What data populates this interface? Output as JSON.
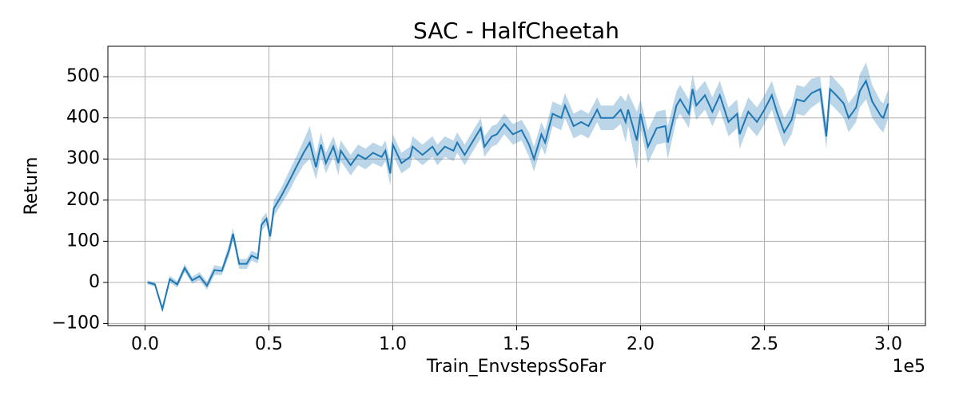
{
  "chart_data": {
    "type": "line",
    "title": "SAC - HalfCheetah",
    "x_label": "Train_EnvstepsSoFar",
    "y_label": "Return",
    "x_offset_label": "1e5",
    "x": [
      1000,
      4000,
      7000,
      10000,
      13000,
      16000,
      19000,
      22000,
      25000,
      28000,
      31000,
      34000,
      35500,
      38000,
      41000,
      43000,
      45500,
      47000,
      49000,
      50500,
      52000,
      55000,
      58500,
      61000,
      64000,
      66500,
      69000,
      71000,
      73000,
      76000,
      78000,
      79000,
      83000,
      86000,
      89000,
      92000,
      95500,
      97000,
      99000,
      100000,
      103500,
      107000,
      108000,
      112000,
      116000,
      118000,
      121000,
      124500,
      126000,
      129000,
      132500,
      135500,
      137000,
      140000,
      142000,
      145000,
      148500,
      152000,
      155000,
      157000,
      160000,
      161500,
      164500,
      168000,
      169500,
      173000,
      176000,
      179000,
      182500,
      184000,
      189000,
      192000,
      194000,
      195000,
      198500,
      200000,
      203000,
      206500,
      210000,
      211000,
      214500,
      216000,
      219500,
      221000,
      222500,
      226000,
      229000,
      232000,
      235500,
      239000,
      240000,
      243500,
      247000,
      250000,
      253000,
      255000,
      258000,
      261000,
      263000,
      266000,
      269000,
      272500,
      275000,
      276500,
      279000,
      282000,
      284000,
      287000,
      288500,
      291000,
      293500,
      297000,
      298000,
      300000
    ],
    "series": [
      {
        "color": "#1f77b4",
        "values": [
          0,
          -5,
          -65,
          8,
          -5,
          35,
          5,
          15,
          -8,
          30,
          28,
          80,
          118,
          45,
          45,
          65,
          58,
          140,
          155,
          112,
          180,
          210,
          250,
          280,
          315,
          340,
          280,
          335,
          290,
          330,
          290,
          320,
          285,
          310,
          300,
          315,
          305,
          320,
          265,
          335,
          290,
          305,
          330,
          310,
          330,
          310,
          330,
          320,
          340,
          310,
          345,
          375,
          330,
          355,
          360,
          385,
          360,
          370,
          335,
          300,
          360,
          340,
          410,
          400,
          430,
          380,
          390,
          380,
          420,
          400,
          400,
          420,
          390,
          420,
          345,
          410,
          330,
          375,
          380,
          340,
          430,
          445,
          410,
          470,
          430,
          455,
          415,
          455,
          390,
          410,
          360,
          415,
          390,
          420,
          455,
          415,
          365,
          395,
          445,
          440,
          460,
          470,
          355,
          470,
          455,
          435,
          400,
          425,
          465,
          490,
          440,
          405,
          400,
          435
        ],
        "errors": [
          5,
          5,
          8,
          8,
          8,
          10,
          8,
          10,
          10,
          12,
          10,
          15,
          15,
          12,
          12,
          12,
          12,
          15,
          15,
          15,
          20,
          20,
          25,
          25,
          30,
          40,
          30,
          30,
          25,
          25,
          30,
          25,
          25,
          25,
          25,
          25,
          25,
          25,
          30,
          25,
          25,
          25,
          25,
          25,
          25,
          25,
          25,
          25,
          25,
          25,
          25,
          25,
          25,
          25,
          25,
          25,
          25,
          25,
          30,
          30,
          30,
          30,
          30,
          30,
          30,
          30,
          30,
          30,
          30,
          30,
          30,
          35,
          50,
          40,
          70,
          35,
          40,
          40,
          40,
          40,
          35,
          35,
          35,
          35,
          35,
          35,
          35,
          35,
          35,
          35,
          35,
          35,
          35,
          35,
          35,
          35,
          35,
          35,
          35,
          35,
          35,
          30,
          30,
          35,
          35,
          35,
          35,
          35,
          40,
          45,
          40,
          35,
          35,
          35
        ]
      }
    ],
    "xlim": [
      -15000,
      315000
    ],
    "ylim": [
      -105,
      574
    ],
    "xticks": [
      {
        "value": 0,
        "label": "0.0"
      },
      {
        "value": 50000,
        "label": "0.5"
      },
      {
        "value": 100000,
        "label": "1.0"
      },
      {
        "value": 150000,
        "label": "1.5"
      },
      {
        "value": 200000,
        "label": "2.0"
      },
      {
        "value": 250000,
        "label": "2.5"
      },
      {
        "value": 300000,
        "label": "3.0"
      }
    ],
    "yticks": [
      {
        "value": -100,
        "label": "−100"
      },
      0,
      100,
      200,
      300,
      400,
      500
    ],
    "grid": true
  }
}
